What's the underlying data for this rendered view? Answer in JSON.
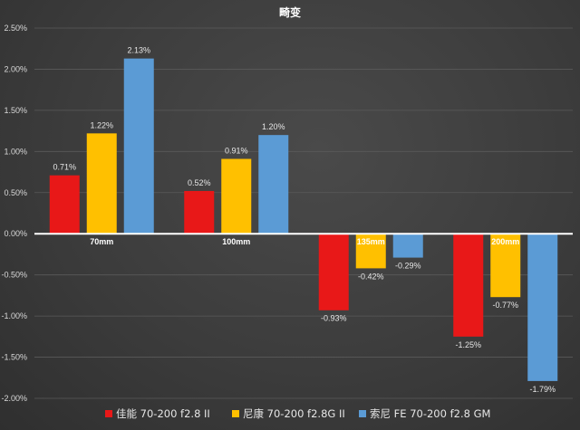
{
  "chart_data": {
    "type": "bar",
    "title": "畸变",
    "categories": [
      "70mm",
      "100mm",
      "135mm",
      "200mm"
    ],
    "series": [
      {
        "name": "佳能 70-200 f2.8 II",
        "color": "#e81818",
        "values": [
          0.71,
          0.52,
          -0.93,
          -1.25
        ],
        "labels": [
          "0.71%",
          "0.52%",
          "-0.93%",
          "-1.25%"
        ]
      },
      {
        "name": "尼康 70-200 f2.8G II",
        "color": "#ffc000",
        "values": [
          1.22,
          0.91,
          -0.42,
          -0.77
        ],
        "labels": [
          "1.22%",
          "0.91%",
          "-0.42%",
          "-0.77%"
        ]
      },
      {
        "name": "索尼 FE 70-200 f2.8 GM",
        "color": "#5b9bd5",
        "values": [
          2.13,
          1.2,
          -0.29,
          -1.79
        ],
        "labels": [
          "2.13%",
          "1.20%",
          "-0.29%",
          "-1.79%"
        ]
      }
    ],
    "y_ticks": [
      2.5,
      2.0,
      1.5,
      1.0,
      0.5,
      0.0,
      -0.5,
      -1.0,
      -1.5,
      -2.0
    ],
    "y_tick_labels": [
      "2.50%",
      "2.00%",
      "1.50%",
      "1.00%",
      "0.50%",
      "0.00%",
      "-0.50%",
      "-1.00%",
      "-1.50%",
      "-2.00%"
    ],
    "ylim": [
      -2.0,
      2.5
    ],
    "xlabel": "",
    "ylabel": "",
    "grid": true,
    "legend_position": "bottom-center"
  }
}
